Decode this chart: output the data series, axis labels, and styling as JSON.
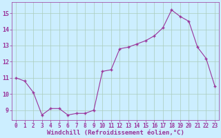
{
  "x": [
    0,
    1,
    2,
    3,
    4,
    5,
    6,
    7,
    8,
    9,
    10,
    11,
    12,
    13,
    14,
    15,
    16,
    17,
    18,
    19,
    20,
    21,
    22,
    23
  ],
  "y": [
    11.0,
    10.8,
    10.1,
    8.7,
    9.1,
    9.1,
    8.7,
    8.8,
    8.8,
    9.0,
    11.4,
    11.5,
    12.8,
    12.9,
    13.1,
    13.3,
    13.6,
    14.1,
    15.2,
    14.8,
    14.5,
    12.9,
    12.2,
    10.5
  ],
  "line_color": "#993399",
  "marker_color": "#993399",
  "bg_color": "#cceeff",
  "grid_color": "#aaccbb",
  "xlabel": "Windchill (Refroidissement éolien,°C)",
  "xlabel_color": "#993399",
  "xtick_labels": [
    "0",
    "1",
    "2",
    "3",
    "4",
    "5",
    "6",
    "7",
    "8",
    "9",
    "10",
    "11",
    "12",
    "13",
    "14",
    "15",
    "16",
    "17",
    "18",
    "19",
    "20",
    "21",
    "22",
    "23"
  ],
  "ytick_labels": [
    "9",
    "10",
    "11",
    "12",
    "13",
    "14",
    "15"
  ],
  "ytick_vals": [
    9,
    10,
    11,
    12,
    13,
    14,
    15
  ],
  "ylim": [
    8.4,
    15.7
  ],
  "xlim": [
    -0.5,
    23.5
  ],
  "font_color": "#993399",
  "tick_fontsize": 5.5,
  "xlabel_fontsize": 6.5,
  "ylabel_fontsize": 6
}
